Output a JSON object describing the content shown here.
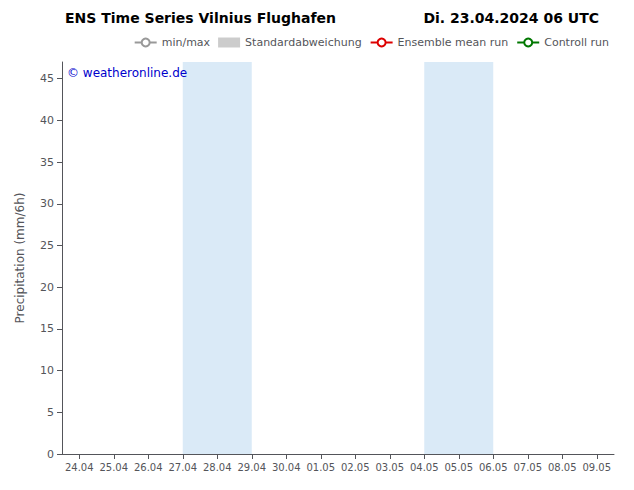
{
  "chart_data": {
    "type": "line",
    "title": "ENS Time Series Vilnius Flughafen",
    "subtitle": "Di. 23.04.2024 06 UTC",
    "ylabel": "Precipitation (mm/6h)",
    "annotations": [
      {
        "text": "© weatheronline.de",
        "color": "#0000cc"
      }
    ],
    "categories": [
      "24.04",
      "25.04",
      "26.04",
      "27.04",
      "28.04",
      "29.04",
      "30.04",
      "01.05",
      "02.05",
      "03.05",
      "04.05",
      "05.05",
      "06.05",
      "07.05",
      "08.05",
      "09.05"
    ],
    "series": [
      {
        "name": "min/max",
        "color": "#999999",
        "values": [
          null,
          null,
          null,
          null,
          null,
          null,
          null,
          null,
          null,
          null,
          null,
          null,
          null,
          null,
          null,
          null
        ]
      },
      {
        "name": "Standardabweichung",
        "type": "area",
        "color": "#cccccc",
        "values": [
          null,
          null,
          null,
          null,
          null,
          null,
          null,
          null,
          null,
          null,
          null,
          null,
          null,
          null,
          null,
          null
        ]
      },
      {
        "name": "Ensemble mean run",
        "color": "#dd0000",
        "values": [
          null,
          null,
          null,
          null,
          null,
          null,
          null,
          null,
          null,
          null,
          null,
          null,
          null,
          null,
          null,
          null
        ]
      },
      {
        "name": "Controll run",
        "color": "#007700",
        "values": [
          null,
          null,
          null,
          null,
          null,
          null,
          null,
          null,
          null,
          null,
          null,
          null,
          null,
          null,
          null,
          null
        ]
      }
    ],
    "shaded_ranges": [
      {
        "start": "27.04",
        "end": "29.04",
        "color": "#daeaf7"
      },
      {
        "start": "04.05",
        "end": "06.05",
        "color": "#daeaf7"
      }
    ],
    "ylim": [
      0,
      47
    ],
    "yticks": [
      0,
      5,
      10,
      15,
      20,
      25,
      30,
      35,
      40,
      45
    ],
    "grid": false,
    "legend": "upper right"
  }
}
